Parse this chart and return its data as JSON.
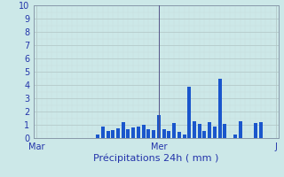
{
  "title": "",
  "xlabel": "Précipitations 24h ( mm )",
  "ylabel": "",
  "background_color": "#cce8e8",
  "bar_color": "#1a56cc",
  "grid_color_major": "#b0c4c4",
  "grid_color_minor": "#c8dcdc",
  "ylim": [
    0,
    10
  ],
  "yticks": [
    0,
    1,
    2,
    3,
    4,
    5,
    6,
    7,
    8,
    9,
    10
  ],
  "xtick_labels": [
    "Mar",
    "Mer",
    "J"
  ],
  "xtick_positions": [
    0,
    24,
    47
  ],
  "values": [
    0,
    0,
    0,
    0,
    0,
    0,
    0,
    0,
    0,
    0,
    0,
    0,
    0.3,
    0.85,
    0.55,
    0.6,
    0.75,
    1.2,
    0.7,
    0.8,
    0.85,
    1.0,
    0.65,
    0.6,
    1.75,
    0.65,
    0.55,
    1.15,
    0.5,
    0.3,
    3.85,
    1.25,
    1.1,
    0.55,
    1.2,
    0.85,
    4.5,
    1.05,
    0.0,
    0.25,
    1.3,
    0.0,
    0.0,
    1.15,
    1.2,
    0,
    0,
    0
  ],
  "num_bars": 48,
  "vline_position": 24,
  "vline_color": "#555588",
  "spine_color": "#8899aa",
  "tick_color": "#2233aa",
  "label_color": "#2233aa",
  "xlabel_fontsize": 8,
  "ytick_fontsize": 7,
  "xtick_fontsize": 7
}
